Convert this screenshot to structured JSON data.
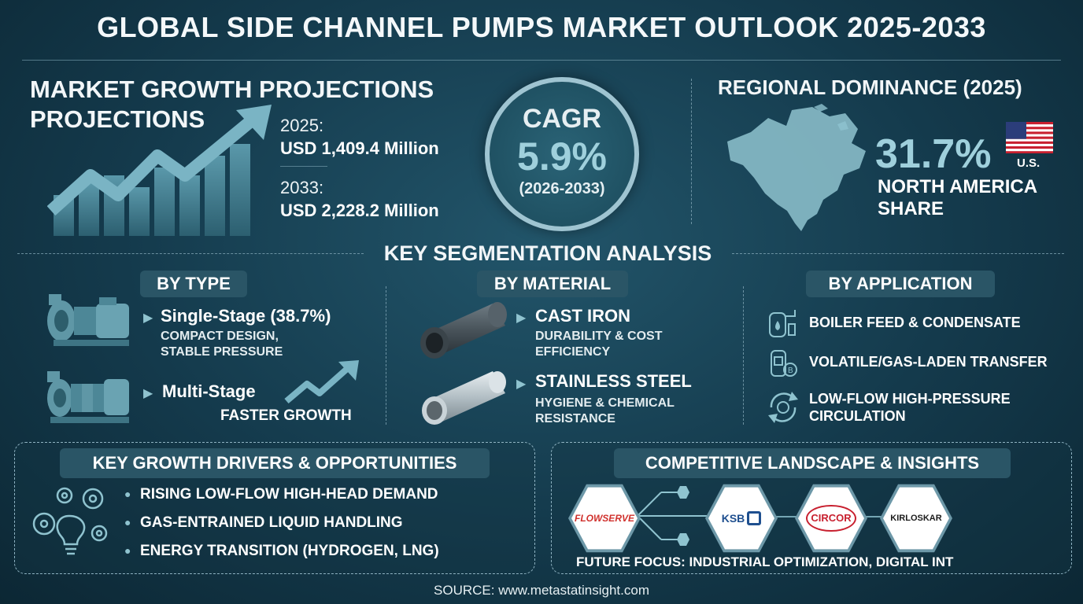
{
  "title": "GLOBAL SIDE CHANNEL PUMPS MARKET OUTLOOK 2025-2033",
  "growth": {
    "heading_line1": "MARKET GROWTH PROJECTIONS",
    "heading_line2": "PROJECTIONS",
    "year1_label": "2025:",
    "year1_value": "USD 1,409.4 Million",
    "year2_label": "2033:",
    "year2_value": "USD 2,228.2 Million"
  },
  "cagr": {
    "label": "CAGR",
    "value": "5.9%",
    "period": "(2026-2033)"
  },
  "regional": {
    "heading": "REGIONAL DOMINANCE (2025)",
    "share": "31.7%",
    "flag_label": "U.S.",
    "region_line1": "NORTH AMERICA",
    "region_line2": "SHARE"
  },
  "segmentation": {
    "heading": "KEY SEGMENTATION ANALYSIS",
    "by_type": {
      "label": "BY TYPE",
      "item1_title": "Single-Stage (38.7%)",
      "item1_sub1": "COMPACT DESIGN,",
      "item1_sub2": "STABLE PRESSURE",
      "item2_title": "Multi-Stage",
      "item2_sub": "FASTER GROWTH"
    },
    "by_material": {
      "label": "BY MATERIAL",
      "item1_title": "CAST IRON",
      "item1_sub1": "DURABILITY & COST",
      "item1_sub2": "EFFICIENCY",
      "item2_title": "STAINLESS STEEL",
      "item2_sub1": "HYGIENE & CHEMICAL",
      "item2_sub2": "RESISTANCE"
    },
    "by_application": {
      "label": "BY APPLICATION",
      "item1": "BOILER FEED & CONDENSATE",
      "item2": "VOLATILE/GAS-LADEN TRANSFER",
      "item3_line1": "LOW-FLOW HIGH-PRESSURE",
      "item3_line2": "CIRCULATION"
    }
  },
  "drivers": {
    "heading": "KEY GROWTH DRIVERS & OPPORTUNITIES",
    "items": [
      "RISING LOW-FLOW HIGH-HEAD DEMAND",
      "GAS-ENTRAINED LIQUID HANDLING",
      "ENERGY TRANSITION (HYDROGEN, LNG)"
    ]
  },
  "competitive": {
    "heading": "COMPETITIVE LANDSCAPE & INSIGHTS",
    "logos": [
      "FLOWSERVE",
      "KSB",
      "CIRCOR",
      "KIRLOSKAR"
    ],
    "future_focus": "FUTURE FOCUS: INDUSTRIAL OPTIMIZATION, DIGITAL INT"
  },
  "source": "SOURCE: www.metastatinsight.com",
  "colors": {
    "background": "#143a4c",
    "accent_teal": "#8fc3cf",
    "pill": "#2a5566",
    "flowserve_red": "#d0312d",
    "ksb_blue": "#1f4f8f",
    "circor_red": "#c8202f"
  },
  "icons": [
    "growth-chart-icon",
    "north-america-map-icon",
    "us-flag-icon",
    "pump-icon",
    "pipe-icon",
    "boiler-icon",
    "gas-tank-icon",
    "circulation-icon",
    "gears-lightbulb-icon",
    "trend-arrow-icon"
  ]
}
